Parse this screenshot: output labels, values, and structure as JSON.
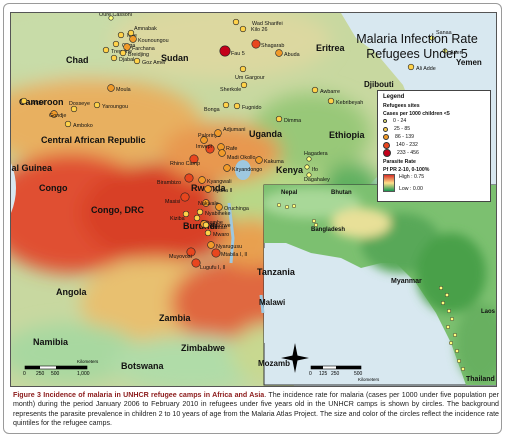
{
  "title_line1": "Malaria Infection Rate",
  "title_line2": "Refugees Under 5",
  "legend": {
    "title": "Legend",
    "sites_title": "Refugees sites",
    "cases_title": "Cases per 1000 children <5",
    "classes": [
      {
        "label": "0 - 24",
        "color": "#ffff7f"
      },
      {
        "label": "25 - 85",
        "color": "#ffd24a"
      },
      {
        "label": "86 - 139",
        "color": "#f09a2a"
      },
      {
        "label": "140 - 232",
        "color": "#e8461e"
      },
      {
        "label": "233 - 456",
        "color": "#c4001a"
      }
    ],
    "parasite_title": "Parasite Rate",
    "parasite_sub": "Pf PR 2-10, 0-100%",
    "high_label": "High : 0.75",
    "low_label": "Low : 0.00"
  },
  "countries": {
    "chad": "Chad",
    "sudan": "Sudan",
    "eritrea": "Eritrea",
    "yemen": "Yemen",
    "djibouti": "Djibouti",
    "somalia": "Som",
    "ethiopia": "Ethiopia",
    "cameroon": "Cameroon",
    "car": "Central African Republic",
    "uganda": "Uganda",
    "guinea": "ial Guinea",
    "congo": "Congo",
    "drc": "Congo, DRC",
    "rwanda": "Rwanda",
    "burundi": "Burundi",
    "kenya": "Kenya",
    "tanzania": "Tanzania",
    "angola": "Angola",
    "zambia": "Zambia",
    "malawi": "Malawi",
    "mozamb": "Mozamb",
    "zimbabwe": "Zimbabwe",
    "namibia": "Namibia",
    "botswana": "Botswana",
    "nepal": "Nepal",
    "bhutan": "Bhutan",
    "bangladesh": "Bangladesh",
    "myanmar": "Myanmar",
    "laos": "Laos",
    "thailand": "Thailand"
  },
  "places": [
    "Oure Cassoni",
    "Wad Sharifei",
    "Kilo 26",
    "Mile",
    "Amnabak",
    "Kounoungou",
    "Gaga",
    "Farchana",
    "Treguine",
    "Breidjing",
    "Djabal",
    "Goz Amer",
    "Fau 5",
    "Shagarab",
    "Um Gargour",
    "Abuda",
    "Sanaa",
    "Aden",
    "Ali Adde",
    "Moula",
    "Langui",
    "Dosseye",
    "Yaroungou",
    "Gondje",
    "Amboko",
    "Sherkole",
    "Bonga",
    "Fugnido",
    "Awbarre",
    "Kebribeyah",
    "Dimma",
    "Palorinya",
    "Adjumani",
    "Imvepi",
    "Rhino Camp",
    "Rafe",
    "Madi Okollo",
    "Kiryandongo",
    "Kakuma",
    "Hagadera",
    "Ifo",
    "Dagahaley",
    "Birambizo",
    "Kyangwali",
    "Kyaka II",
    "Masisi",
    "Nakivale",
    "Oruchinga",
    "Nyabiheke",
    "Kiziba",
    "Gihembe",
    "Gasorwe",
    "Mwaro",
    "Nyarugusu",
    "Mtabila I, II",
    "Muyovosi",
    "Lugufu I, II",
    "Buttarr"
  ],
  "scale_africa": [
    "0",
    "250",
    "500",
    "1,000"
  ],
  "scale_asia": [
    "0",
    "125",
    "250",
    "500"
  ],
  "scale_unit": "Kilometers",
  "caption_bold": "Figure 3 Incidence of malaria in UNHCR refugee camps in Africa and Asia",
  "caption_text": ". The incidence rate for malaria (cases per 1000 under five population per month) during the period January 2006 to February 2010 in refugees under five years old in the UNHCR camps is shown by circles. The background represents the parasite prevalence in children 2 to 10 years of age from the Malaria Atlas Project. The size and color of the circles reflect the incidence rate quintiles for the refugee camps."
}
